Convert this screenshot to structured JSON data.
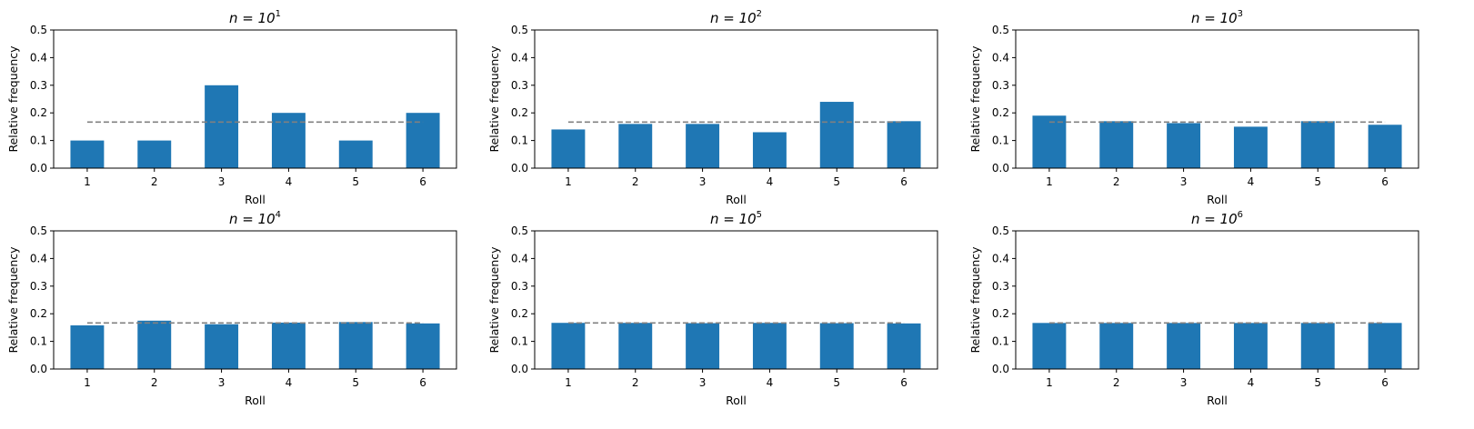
{
  "chart_data": [
    {
      "type": "bar",
      "title": "n = 10",
      "title_exp": "1",
      "xlabel": "Roll",
      "ylabel": "Relative frequency",
      "categories": [
        "1",
        "2",
        "3",
        "4",
        "5",
        "6"
      ],
      "values": [
        0.1,
        0.1,
        0.3,
        0.2,
        0.1,
        0.2
      ],
      "ylim": [
        0,
        0.5
      ],
      "yticks": [
        "0.0",
        "0.1",
        "0.2",
        "0.3",
        "0.4",
        "0.5"
      ],
      "reference_line": 0.1667,
      "bar_color": "#1f77b4",
      "reference_color": "#808080",
      "grid": false
    },
    {
      "type": "bar",
      "title": "n = 10",
      "title_exp": "2",
      "xlabel": "Roll",
      "ylabel": "Relative frequency",
      "categories": [
        "1",
        "2",
        "3",
        "4",
        "5",
        "6"
      ],
      "values": [
        0.14,
        0.16,
        0.16,
        0.13,
        0.24,
        0.17
      ],
      "ylim": [
        0,
        0.5
      ],
      "yticks": [
        "0.0",
        "0.1",
        "0.2",
        "0.3",
        "0.4",
        "0.5"
      ],
      "reference_line": 0.1667,
      "bar_color": "#1f77b4",
      "reference_color": "#808080",
      "grid": false
    },
    {
      "type": "bar",
      "title": "n = 10",
      "title_exp": "3",
      "xlabel": "Roll",
      "ylabel": "Relative frequency",
      "categories": [
        "1",
        "2",
        "3",
        "4",
        "5",
        "6"
      ],
      "values": [
        0.19,
        0.17,
        0.163,
        0.15,
        0.17,
        0.157
      ],
      "ylim": [
        0,
        0.5
      ],
      "yticks": [
        "0.0",
        "0.1",
        "0.2",
        "0.3",
        "0.4",
        "0.5"
      ],
      "reference_line": 0.1667,
      "bar_color": "#1f77b4",
      "reference_color": "#808080",
      "grid": false
    },
    {
      "type": "bar",
      "title": "n = 10",
      "title_exp": "4",
      "xlabel": "Roll",
      "ylabel": "Relative frequency",
      "categories": [
        "1",
        "2",
        "3",
        "4",
        "5",
        "6"
      ],
      "values": [
        0.158,
        0.175,
        0.162,
        0.168,
        0.17,
        0.165
      ],
      "ylim": [
        0,
        0.5
      ],
      "yticks": [
        "0.0",
        "0.1",
        "0.2",
        "0.3",
        "0.4",
        "0.5"
      ],
      "reference_line": 0.1667,
      "bar_color": "#1f77b4",
      "reference_color": "#808080",
      "grid": false
    },
    {
      "type": "bar",
      "title": "n = 10",
      "title_exp": "5",
      "xlabel": "Roll",
      "ylabel": "Relative frequency",
      "categories": [
        "1",
        "2",
        "3",
        "4",
        "5",
        "6"
      ],
      "values": [
        0.167,
        0.167,
        0.166,
        0.167,
        0.166,
        0.165
      ],
      "ylim": [
        0,
        0.5
      ],
      "yticks": [
        "0.0",
        "0.1",
        "0.2",
        "0.3",
        "0.4",
        "0.5"
      ],
      "reference_line": 0.1667,
      "bar_color": "#1f77b4",
      "reference_color": "#808080",
      "grid": false
    },
    {
      "type": "bar",
      "title": "n = 10",
      "title_exp": "6",
      "xlabel": "Roll",
      "ylabel": "Relative frequency",
      "categories": [
        "1",
        "2",
        "3",
        "4",
        "5",
        "6"
      ],
      "values": [
        0.1667,
        0.1667,
        0.1667,
        0.1667,
        0.1667,
        0.1667
      ],
      "ylim": [
        0,
        0.5
      ],
      "yticks": [
        "0.0",
        "0.1",
        "0.2",
        "0.3",
        "0.4",
        "0.5"
      ],
      "reference_line": 0.1667,
      "bar_color": "#1f77b4",
      "reference_color": "#808080",
      "grid": false
    }
  ]
}
